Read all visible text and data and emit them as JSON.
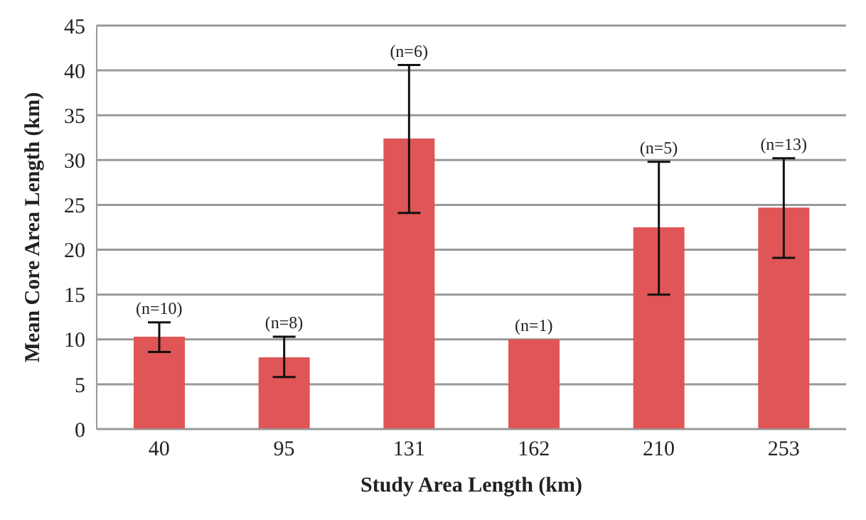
{
  "chart_data": {
    "type": "bar",
    "xlabel": "Study Area Length (km)",
    "ylabel": "Mean Core Area Length (km)",
    "categories": [
      "40",
      "95",
      "131",
      "162",
      "210",
      "253"
    ],
    "values": [
      10.3,
      8.0,
      32.4,
      10.0,
      22.5,
      24.7
    ],
    "color": "#e05555",
    "errors": [
      [
        8.6,
        11.9
      ],
      [
        5.8,
        10.3
      ],
      [
        24.1,
        40.6
      ],
      null,
      [
        15.0,
        29.8
      ],
      [
        19.1,
        30.2
      ]
    ],
    "ylim": [
      0,
      45
    ],
    "yticks": [
      0,
      5,
      10,
      15,
      20,
      25,
      30,
      35,
      40,
      45
    ],
    "grid": "y",
    "annotations": [
      {
        "text": "(n=10)",
        "x": "40",
        "y": 11.9
      },
      {
        "text": "(n=8)",
        "x": "95",
        "y": 10.3
      },
      {
        "text": "(n=6)",
        "x": "131",
        "y": 40.6
      },
      {
        "text": "(n=1)",
        "x": "162",
        "y": 10.0
      },
      {
        "text": "(n=5)",
        "x": "210",
        "y": 29.8
      },
      {
        "text": "(n=13)",
        "x": "253",
        "y": 30.2
      }
    ]
  }
}
